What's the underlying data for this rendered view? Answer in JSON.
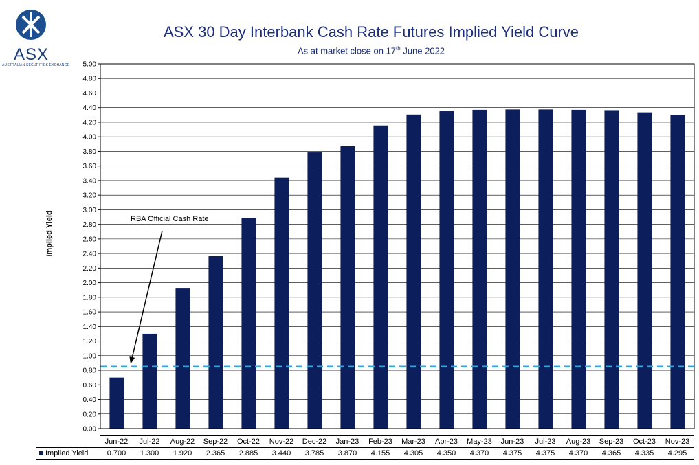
{
  "logo": {
    "text": "ASX",
    "subtext": "AUSTRALIAN SECURITIES EXCHANGE"
  },
  "chart_data": {
    "type": "bar",
    "title": "ASX 30 Day Interbank Cash Rate Futures Implied Yield Curve",
    "subtitle_prefix": "As at market close on 17",
    "subtitle_sup": "th",
    "subtitle_suffix": " June 2022",
    "ylabel": "Implied Yield",
    "xlabel": "",
    "ylim": [
      0,
      5
    ],
    "yticks": [
      "0.00",
      "0.20",
      "0.40",
      "0.60",
      "0.80",
      "1.00",
      "1.20",
      "1.40",
      "1.60",
      "1.80",
      "2.00",
      "2.20",
      "2.40",
      "2.60",
      "2.80",
      "3.00",
      "3.20",
      "3.40",
      "3.60",
      "3.80",
      "4.00",
      "4.20",
      "4.40",
      "4.60",
      "4.80",
      "5.00"
    ],
    "grid": true,
    "categories": [
      "Jun-22",
      "Jul-22",
      "Aug-22",
      "Sep-22",
      "Oct-22",
      "Nov-22",
      "Dec-22",
      "Jan-23",
      "Feb-23",
      "Mar-23",
      "Apr-23",
      "May-23",
      "Jun-23",
      "Jul-23",
      "Aug-23",
      "Sep-23",
      "Oct-23",
      "Nov-23"
    ],
    "series": [
      {
        "name": "Implied Yield",
        "color": "#0c1e5c",
        "values": [
          0.7,
          1.3,
          1.92,
          2.365,
          2.885,
          3.44,
          3.785,
          3.87,
          4.155,
          4.305,
          4.35,
          4.37,
          4.375,
          4.375,
          4.37,
          4.365,
          4.335,
          4.295
        ],
        "labels": [
          "0.700",
          "1.300",
          "1.920",
          "2.365",
          "2.885",
          "3.440",
          "3.785",
          "3.870",
          "4.155",
          "4.305",
          "4.350",
          "4.370",
          "4.375",
          "4.375",
          "4.370",
          "4.365",
          "4.335",
          "4.295"
        ]
      }
    ],
    "reference_line": {
      "label": "RBA Official Cash Rate",
      "value": 0.85,
      "color": "#29a8e0"
    }
  }
}
